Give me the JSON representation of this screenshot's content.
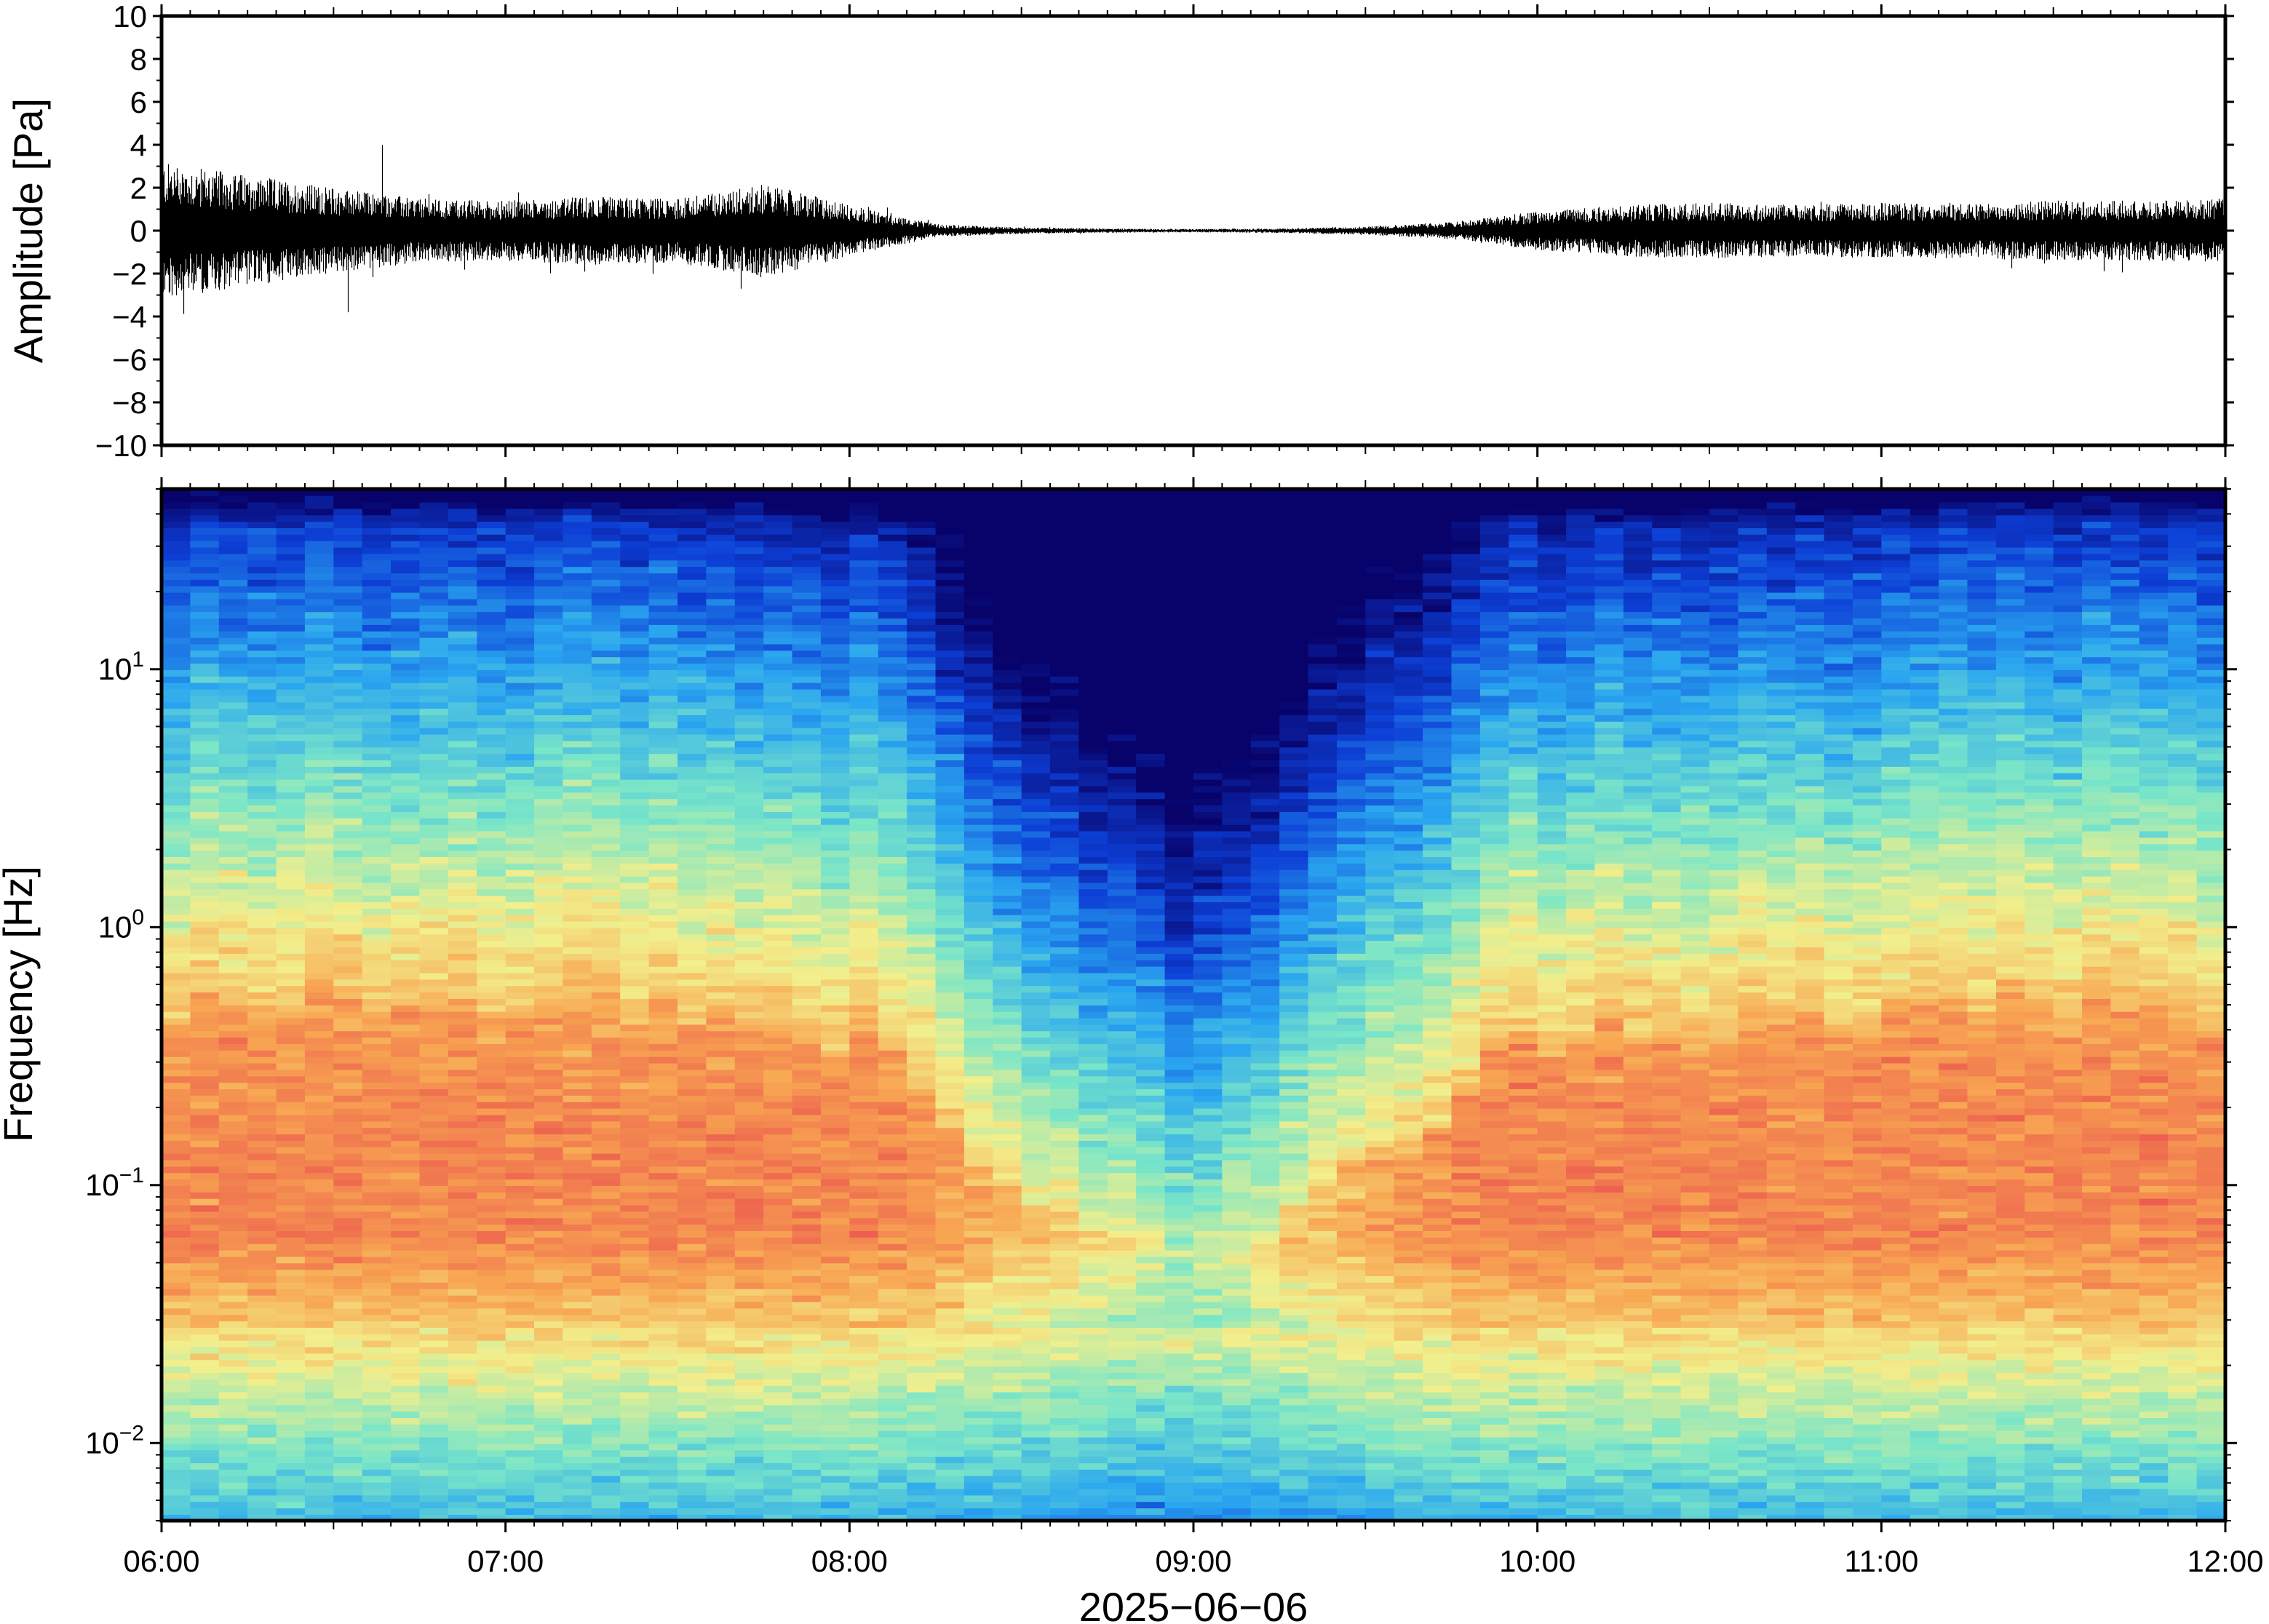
{
  "chart_data": [
    {
      "type": "line",
      "panel": "waveform",
      "ylabel": "Amplitude [Pa]",
      "ylim": [
        -10,
        10
      ],
      "yticks": [
        "10",
        "8",
        "6",
        "4",
        "2",
        "0",
        "−2",
        "−4",
        "−6",
        "−8",
        "−10"
      ],
      "ytick_values": [
        10,
        8,
        6,
        4,
        2,
        0,
        -2,
        -4,
        -6,
        -8,
        -10
      ],
      "x_range": [
        "06:00",
        "12:00"
      ],
      "series": [
        {
          "x": [
            "06:00",
            "06:15",
            "06:30",
            "06:45",
            "07:00",
            "07:15",
            "07:30",
            "07:45",
            "08:00",
            "08:15",
            "08:30",
            "08:45",
            "09:00",
            "09:15",
            "09:30",
            "09:45",
            "10:00",
            "10:15",
            "10:30",
            "10:45",
            "11:00",
            "11:15",
            "11:30",
            "11:45",
            "12:00"
          ],
          "envelope_max": [
            3.2,
            2.6,
            2.0,
            1.5,
            1.4,
            1.6,
            1.5,
            2.2,
            1.2,
            0.3,
            0.15,
            0.1,
            0.08,
            0.1,
            0.2,
            0.4,
            0.9,
            1.2,
            1.3,
            1.2,
            1.3,
            1.3,
            1.4,
            1.4,
            1.5
          ],
          "peak_max": 4.0,
          "peak_min": -3.8
        }
      ]
    },
    {
      "type": "heatmap",
      "panel": "spectrogram",
      "ylabel": "Frequency [Hz]",
      "xlabel": "2025−06−06",
      "y_scale": "log",
      "ylim": [
        0.005,
        50
      ],
      "yticks": [
        {
          "base": "10",
          "exp": "1",
          "value": 10
        },
        {
          "base": "10",
          "exp": "0",
          "value": 1
        },
        {
          "base": "10",
          "exp": "−1",
          "value": 0.1
        },
        {
          "base": "10",
          "exp": "−2",
          "value": 0.01
        }
      ],
      "xticks": [
        "06:00",
        "07:00",
        "08:00",
        "09:00",
        "10:00",
        "11:00",
        "12:00"
      ],
      "colormap": "rainbow (blue = low power, red = high power)",
      "colors": [
        "#08036b",
        "#0d3fd6",
        "#2aa6f0",
        "#7ae6c8",
        "#f2ef8c",
        "#f8a652",
        "#ec5a4e"
      ],
      "x": [
        "06:00",
        "06:30",
        "07:00",
        "07:30",
        "08:00",
        "08:15",
        "08:30",
        "08:45",
        "09:00",
        "09:15",
        "09:30",
        "09:45",
        "10:00",
        "10:30",
        "11:00",
        "11:30",
        "12:00"
      ],
      "noise_floor_frequency_hz": [
        0.8,
        0.9,
        0.8,
        0.8,
        0.6,
        0.3,
        0.15,
        0.1,
        0.08,
        0.1,
        0.2,
        0.3,
        0.6,
        0.7,
        0.7,
        0.8,
        0.7
      ],
      "notes": "quiet interval ~08:15–09:45 shows low power (dark blue) above ~1 Hz"
    }
  ]
}
